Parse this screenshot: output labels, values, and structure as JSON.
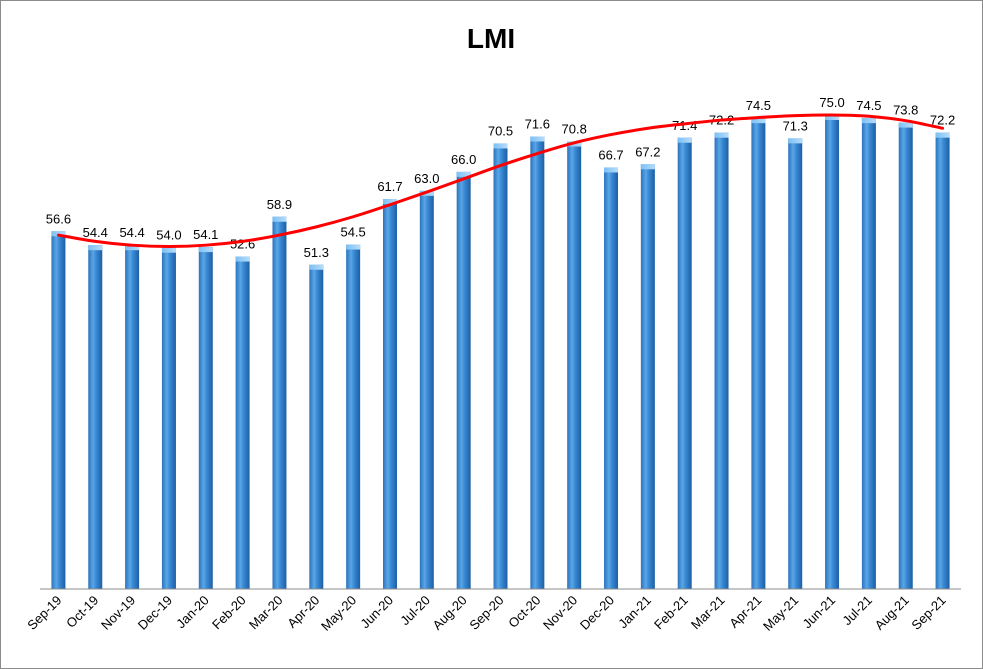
{
  "chart_data": {
    "type": "bar",
    "title": "LMI",
    "xlabel": "",
    "ylabel": "",
    "ylim": [
      0,
      80
    ],
    "grid": false,
    "legend": "none",
    "categories": [
      "Sep-19",
      "Oct-19",
      "Nov-19",
      "Dec-19",
      "Jan-20",
      "Feb-20",
      "Mar-20",
      "Apr-20",
      "May-20",
      "Jun-20",
      "Jul-20",
      "Aug-20",
      "Sep-20",
      "Oct-20",
      "Nov-20",
      "Dec-20",
      "Jan-21",
      "Feb-21",
      "Mar-21",
      "Apr-21",
      "May-21",
      "Jun-21",
      "Jul-21",
      "Aug-21",
      "Sep-21"
    ],
    "values": [
      56.6,
      54.4,
      54.4,
      54.0,
      54.1,
      52.6,
      58.9,
      51.3,
      54.5,
      61.7,
      63.0,
      66.0,
      70.5,
      71.6,
      70.8,
      66.7,
      67.2,
      71.4,
      72.2,
      74.5,
      71.3,
      75.0,
      74.5,
      73.8,
      72.2
    ],
    "value_labels": [
      "56.6",
      "54.4",
      "54.4",
      "54.0",
      "54.1",
      "52.6",
      "58.9",
      "51.3",
      "54.5",
      "61.7",
      "63.0",
      "66.0",
      "70.5",
      "71.6",
      "70.8",
      "66.7",
      "67.2",
      "71.4",
      "72.2",
      "74.5",
      "71.3",
      "75.0",
      "74.5",
      "73.8",
      "72.2"
    ],
    "trendline": {
      "type": "polynomial",
      "color": "#ff0000",
      "values": [
        56.0,
        55.0,
        54.4,
        54.2,
        54.4,
        55.0,
        56.0,
        57.3,
        58.9,
        60.8,
        62.8,
        64.9,
        67.0,
        68.9,
        70.6,
        71.9,
        72.9,
        73.6,
        74.2,
        74.6,
        74.9,
        75.0,
        74.8,
        74.1,
        72.9
      ]
    },
    "colors": {
      "bar": "#2f7fce",
      "bar_light": "#7cc0f4",
      "bar_dark": "#1d5fa3",
      "axis": "#8c8c8c"
    }
  }
}
